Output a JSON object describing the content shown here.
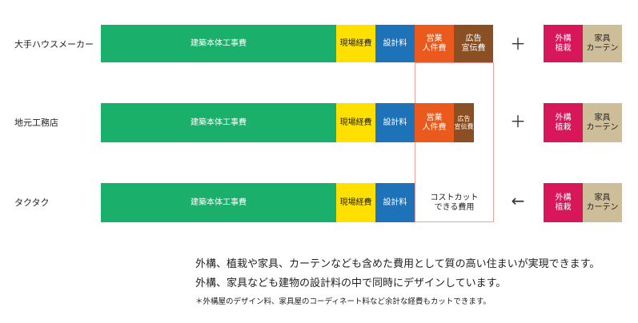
{
  "rows": [
    {
      "label": "大手ハウスメーカー",
      "construction": "建築本体工事費",
      "site": "現場経費",
      "design": "設計料",
      "sales": "営業\n人件費",
      "ad": "広告\n宣伝費",
      "operator": "＋",
      "exterior": "外構\n植栽",
      "furniture": "家具\nカーテン"
    },
    {
      "label": "地元工務店",
      "construction": "建築本体工事費",
      "site": "現場経費",
      "design": "設計料",
      "sales": "営業\n人件費",
      "ad": "広告\n宣伝費",
      "operator": "＋",
      "exterior": "外構\n植栽",
      "furniture": "家具\nカーテン"
    },
    {
      "label": "タクタク",
      "construction": "建築本体工事費",
      "site": "現場経費",
      "design": "設計料",
      "cost_cut": "コストカット\nできる費用",
      "operator": "←",
      "exterior": "外構\n植栽",
      "furniture": "家具\nカーテン"
    }
  ],
  "notes": {
    "line1": "外構、植栽や家具、カーテンなども含めた費用として質の高い住まいが実現できます。",
    "line2": "外構、家具なども建物の設計料の中で同時にデザインしています。",
    "footnote": "＊外構屋のデザイン料、家具屋のコーディネート料など余計な経費もカットできます。"
  },
  "colors": {
    "construction": "#1aaf6a",
    "site": "#ffe000",
    "design": "#1d72b8",
    "sales": "#ea5a1c",
    "ad": "#8a4f22",
    "exterior": "#d8175a",
    "furniture": "#cdbd99",
    "outline": "#e8a0a0"
  }
}
